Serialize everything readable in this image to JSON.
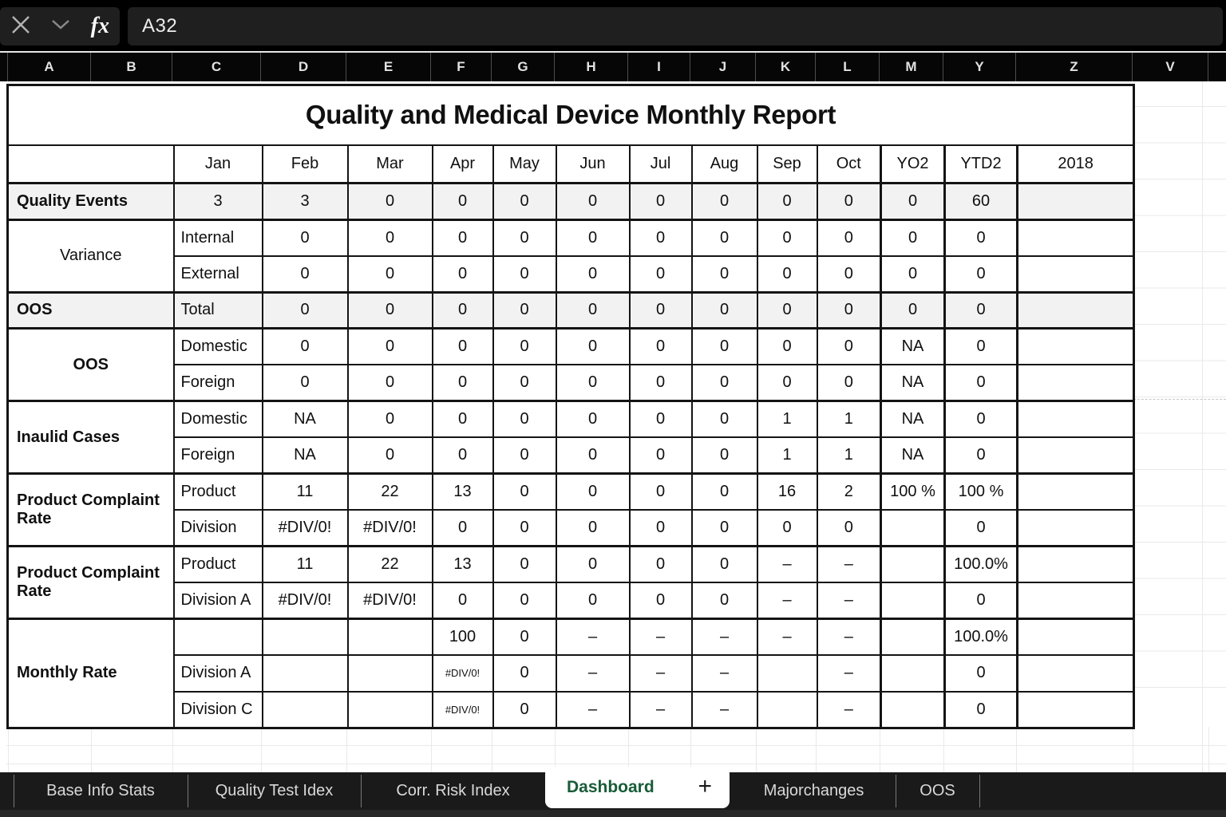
{
  "formula_bar": {
    "cell_ref": "A32",
    "fx_label": "fx"
  },
  "column_headers": [
    "",
    "A",
    "B",
    "C",
    "D",
    "E",
    "F",
    "G",
    "H",
    "I",
    "J",
    "K",
    "L",
    "M",
    "Y",
    "Z",
    "V",
    ""
  ],
  "table": {
    "title": "Quality and Medical Device Monthly Report",
    "header": [
      "",
      "Jan",
      "Feb",
      "Mar",
      "Apr",
      "May",
      "Jun",
      "Jul",
      "Aug",
      "Sep",
      "Oct",
      "YO2",
      "YTD2",
      "2018"
    ],
    "groups": [
      {
        "label": "Quality Events",
        "shaded": true,
        "rows": [
          {
            "sub": false,
            "cells": [
              "3",
              "3",
              "0",
              "0",
              "0",
              "0",
              "0",
              "0",
              "0",
              "0",
              "0",
              "60",
              ""
            ]
          }
        ]
      },
      {
        "label": "Variance",
        "label_align": "center",
        "label_weight": "normal",
        "rows": [
          {
            "sub": true,
            "cells": [
              "Internal",
              "0",
              "0",
              "0",
              "0",
              "0",
              "0",
              "0",
              "0",
              "0",
              "0",
              "0",
              ""
            ]
          },
          {
            "sub": true,
            "cells": [
              "External",
              "0",
              "0",
              "0",
              "0",
              "0",
              "0",
              "0",
              "0",
              "0",
              "0",
              "0",
              ""
            ]
          }
        ]
      },
      {
        "label": "OOS",
        "shaded": true,
        "rows": [
          {
            "sub": true,
            "cells": [
              "Total",
              "0",
              "0",
              "0",
              "0",
              "0",
              "0",
              "0",
              "0",
              "0",
              "0",
              "0",
              ""
            ]
          }
        ]
      },
      {
        "label": "OOS",
        "label_align": "center",
        "rows": [
          {
            "sub": true,
            "cells": [
              "Domestic",
              "0",
              "0",
              "0",
              "0",
              "0",
              "0",
              "0",
              "0",
              "0",
              "NA",
              "0",
              ""
            ]
          },
          {
            "sub": true,
            "cells": [
              "Foreign",
              "0",
              "0",
              "0",
              "0",
              "0",
              "0",
              "0",
              "0",
              "0",
              "NA",
              "0",
              ""
            ]
          }
        ]
      },
      {
        "label": "Inaulid Cases",
        "rows": [
          {
            "sub": true,
            "cells": [
              "Domestic",
              "NA",
              "0",
              "0",
              "0",
              "0",
              "0",
              "0",
              "1",
              "1",
              "NA",
              "0",
              ""
            ]
          },
          {
            "sub": true,
            "cells": [
              "Foreign",
              "NA",
              "0",
              "0",
              "0",
              "0",
              "0",
              "0",
              "1",
              "1",
              "NA",
              "0",
              ""
            ]
          }
        ]
      },
      {
        "label": "Product Complaint Rate",
        "rows": [
          {
            "sub": true,
            "cells": [
              "Product",
              "11",
              "22",
              "13",
              "0",
              "0",
              "0",
              "0",
              "16",
              "2",
              "100 %",
              "100 %",
              ""
            ]
          },
          {
            "sub": true,
            "cells": [
              "Division",
              "#DIV/0!",
              "#DIV/0!",
              "0",
              "0",
              "0",
              "0",
              "0",
              "0",
              "0",
              "",
              "0",
              ""
            ]
          }
        ]
      },
      {
        "label": "Product Complaint Rate",
        "rows": [
          {
            "sub": true,
            "cells": [
              "Product",
              "11",
              "22",
              "13",
              "0",
              "0",
              "0",
              "0",
              "–",
              "–",
              "",
              "100.0%",
              ""
            ]
          },
          {
            "sub": true,
            "cells": [
              "Division A",
              "#DIV/0!",
              "#DIV/0!",
              "0",
              "0",
              "0",
              "0",
              "0",
              "–",
              "–",
              "",
              "0",
              ""
            ]
          }
        ]
      },
      {
        "label": "Monthly Rate",
        "rows": [
          {
            "sub": true,
            "cells": [
              "",
              "",
              "",
              "100",
              "0",
              "–",
              "–",
              "–",
              "–",
              "–",
              "",
              "100.0%",
              ""
            ]
          },
          {
            "sub": true,
            "cells": [
              "Division A",
              "",
              "",
              "#DIV/0!",
              "0",
              "–",
              "–",
              "–",
              "",
              "–",
              "",
              "0",
              ""
            ]
          },
          {
            "sub": true,
            "cells": [
              "Division C",
              "",
              "",
              "#DIV/0!",
              "0",
              "–",
              "–",
              "–",
              "",
              "–",
              "",
              "0",
              ""
            ]
          }
        ]
      }
    ]
  },
  "sheet_tabs": {
    "tabs_left": [
      "Base Info Stats",
      "Quality Test Idex",
      "Corr. Risk Index"
    ],
    "active": "Dashboard",
    "add_label": "+",
    "tabs_right": [
      "Majorchanges",
      "OOS"
    ]
  }
}
